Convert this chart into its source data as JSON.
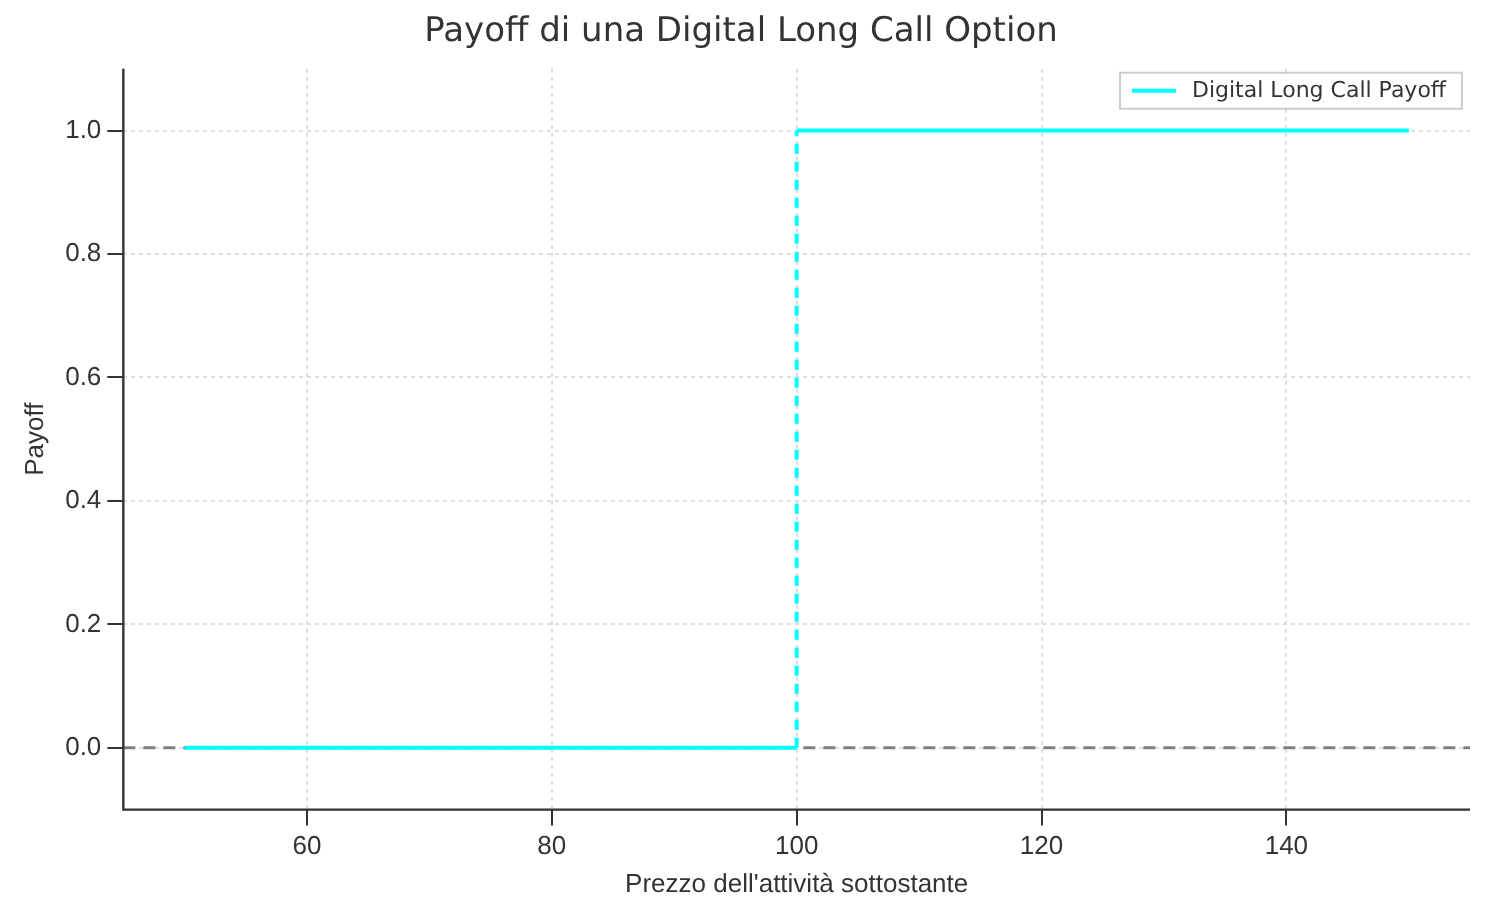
{
  "chart_data": {
    "type": "step",
    "title": "Payoff di una Digital Long Call Option",
    "xlabel": "Prezzo dell'attività sottostante",
    "ylabel": "Payoff",
    "series": [
      {
        "name": "Digital Long Call Payoff",
        "color": "#00ffff",
        "x": [
          50,
          100,
          100,
          150
        ],
        "values": [
          0,
          0,
          1,
          1
        ]
      }
    ],
    "xlim": [
      45,
      155
    ],
    "xticks": [
      60,
      80,
      100,
      120,
      140
    ],
    "ylim": [
      -0.1,
      1.1
    ],
    "yticks": [
      {
        "value": 0,
        "label": "0.0"
      },
      {
        "value": 0.2,
        "label": "0.2"
      },
      {
        "value": 0.4,
        "label": "0.4"
      },
      {
        "value": 0.6,
        "label": "0.6"
      },
      {
        "value": 0.8,
        "label": "0.8"
      },
      {
        "value": 1,
        "label": "1.0"
      }
    ],
    "ref_lines": [
      {
        "axis": "y",
        "value": 0,
        "color": "#808080",
        "line_style": "dashed"
      }
    ],
    "grid": true,
    "legend": "top right",
    "marker": "none",
    "line_style": "solid"
  }
}
